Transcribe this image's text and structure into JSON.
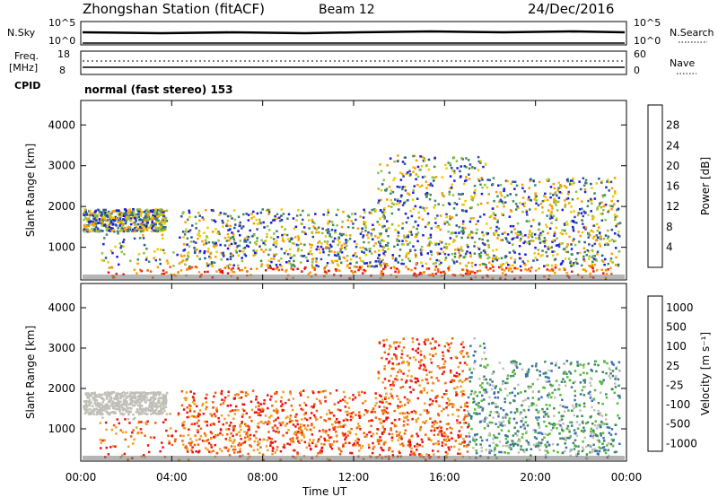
{
  "header": {
    "title": "Zhongshan Station (fitACF)",
    "beam": "Beam 12",
    "date": "24/Dec/2016"
  },
  "top_panels": {
    "nsky_label": "N.Sky",
    "nsky_ticks": [
      "10^5",
      "10^0"
    ],
    "nsearch_label": "N.Search",
    "nsearch_ticks": [
      "10^5",
      "10^0"
    ],
    "freq_label_line1": "Freq.",
    "freq_label_line2": "[MHz]",
    "freq_ticks": [
      "18",
      "8"
    ],
    "nave_label": "Nave",
    "nave_ticks": [
      "60",
      "0"
    ],
    "cpid_label": "CPID",
    "cpid_text": "normal (fast stereo) 153"
  },
  "chart_data": [
    {
      "type": "heatmap",
      "name": "power-panel",
      "ylabel": "Slant Range [km]",
      "xlabel": "Time UT",
      "y_ticks": [
        "4000",
        "3000",
        "2000",
        "1000"
      ],
      "ylim": [
        200,
        4600
      ],
      "x_ticks": [
        "00:00",
        "04:00",
        "08:00",
        "12:00",
        "16:00",
        "20:00",
        "00:00"
      ],
      "colorbar": {
        "label": "Power [dB]",
        "ticks": [
          "28",
          "24",
          "20",
          "16",
          "12",
          "8",
          "4"
        ],
        "colors": [
          "#ee1111",
          "#ff5500",
          "#ff9900",
          "#f0c800",
          "#90c040",
          "#3c8a60",
          "#2a4fa0",
          "#1a1ae0"
        ]
      }
    },
    {
      "type": "heatmap",
      "name": "velocity-panel",
      "ylabel": "Slant Range [km]",
      "xlabel": "Time UT",
      "y_ticks": [
        "4000",
        "3000",
        "2000",
        "1000"
      ],
      "ylim": [
        200,
        4600
      ],
      "x_ticks": [
        "00:00",
        "04:00",
        "08:00",
        "12:00",
        "16:00",
        "20:00",
        "00:00"
      ],
      "colorbar": {
        "label": "Velocity [m s⁻¹]",
        "ticks": [
          "1000",
          "500",
          "100",
          "25",
          "-25",
          "-100",
          "-500",
          "-1000"
        ],
        "colors": [
          "#1a3aa8",
          "#3e6fb0",
          "#3c8a60",
          "#55bb33",
          "#c0c0b8",
          "#f0a020",
          "#f06010",
          "#ee1111"
        ]
      }
    }
  ],
  "footer": {
    "xlabel": "Time UT"
  }
}
